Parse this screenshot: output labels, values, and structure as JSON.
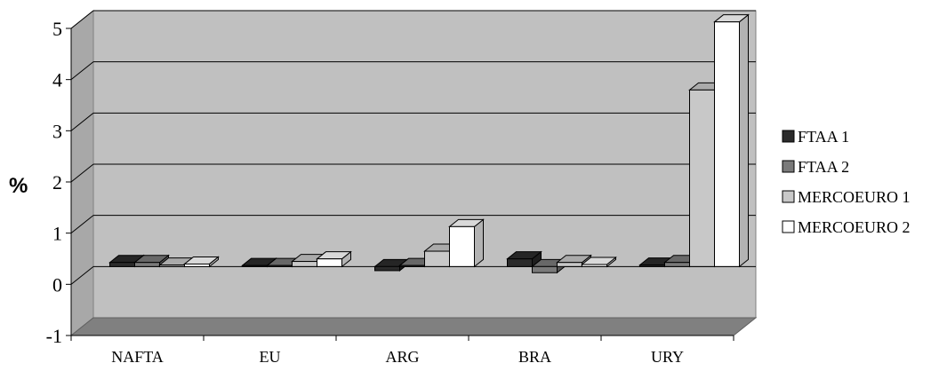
{
  "chart_data": {
    "type": "bar",
    "style": "3d-clustered-column",
    "ylabel": "%",
    "ylim": [
      -1,
      5
    ],
    "yticks": [
      "-1",
      "0",
      "1",
      "2",
      "3",
      "4",
      "5"
    ],
    "grid": true,
    "legend_position": "right",
    "categories": [
      "NAFTA",
      "EU",
      "ARG",
      "BRA",
      "URY"
    ],
    "series": [
      {
        "name": "FTAA 1",
        "color": "#2b2b2b",
        "values": [
          0.08,
          0.02,
          -0.08,
          0.15,
          0.03
        ]
      },
      {
        "name": "FTAA 2",
        "color": "#7a7a7a",
        "values": [
          0.08,
          0.02,
          0.02,
          -0.12,
          0.08
        ]
      },
      {
        "name": "MERCOEURO 1",
        "color": "#c8c8c8",
        "values": [
          0.03,
          0.1,
          0.3,
          0.08,
          3.45
        ]
      },
      {
        "name": "MERCOEURO 2",
        "color": "#ffffff",
        "values": [
          0.05,
          0.15,
          0.78,
          0.04,
          4.78
        ]
      }
    ]
  }
}
